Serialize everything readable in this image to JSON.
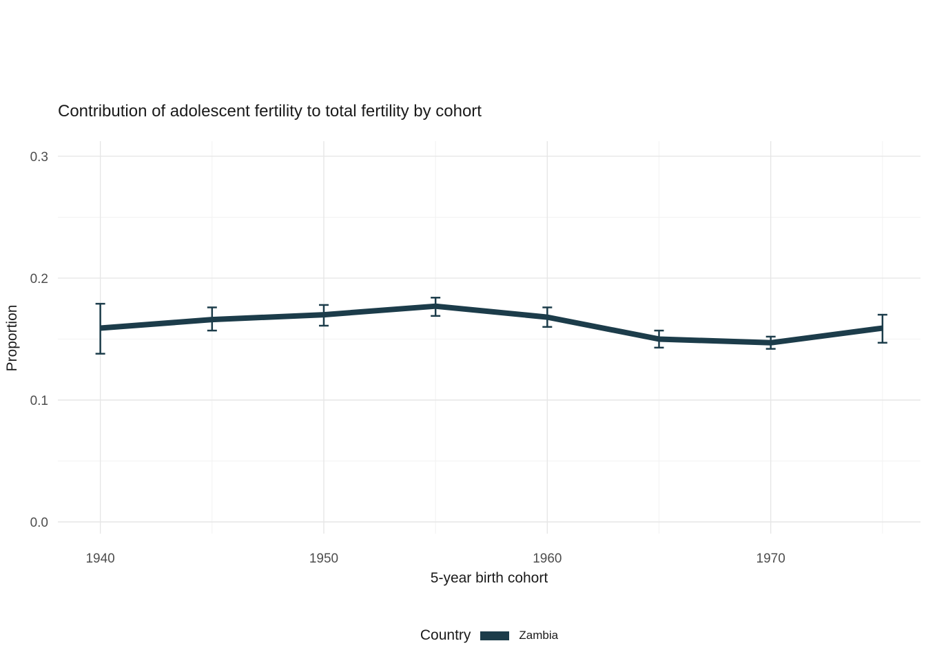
{
  "chart_data": {
    "type": "line",
    "title": "Contribution of adolescent fertility to total fertility by cohort",
    "xlabel": "5-year birth cohort",
    "ylabel": "Proportion",
    "legend_title": "Country",
    "legend_position": "bottom",
    "grid": true,
    "series": [
      {
        "name": "Zambia",
        "color": "#1c3c4a",
        "x": [
          1940,
          1945,
          1950,
          1955,
          1960,
          1965,
          1970,
          1975
        ],
        "y": [
          0.159,
          0.166,
          0.17,
          0.177,
          0.168,
          0.15,
          0.147,
          0.159
        ],
        "y_lo": [
          0.138,
          0.157,
          0.161,
          0.169,
          0.16,
          0.143,
          0.142,
          0.147
        ],
        "y_hi": [
          0.179,
          0.176,
          0.178,
          0.184,
          0.176,
          0.157,
          0.152,
          0.17
        ]
      }
    ],
    "x_ticks": [
      1940,
      1950,
      1960,
      1970
    ],
    "x_tick_labels": [
      "1940",
      "1950",
      "1960",
      "1970"
    ],
    "x_minor": [
      1945,
      1955,
      1965,
      1975
    ],
    "y_ticks": [
      0.0,
      0.1,
      0.2,
      0.3
    ],
    "y_tick_labels": [
      "0.0",
      "0.1",
      "0.2",
      "0.3"
    ],
    "y_minor": [
      0.05,
      0.15,
      0.25
    ],
    "xlim": [
      1938.1,
      1976.7
    ],
    "ylim": [
      0,
      0.3
    ],
    "colors": {
      "series": "#1c3c4a",
      "grid_major": "#e6e6e6",
      "grid_minor": "#f2f2f2",
      "tick_text": "#4d4d4d"
    }
  }
}
